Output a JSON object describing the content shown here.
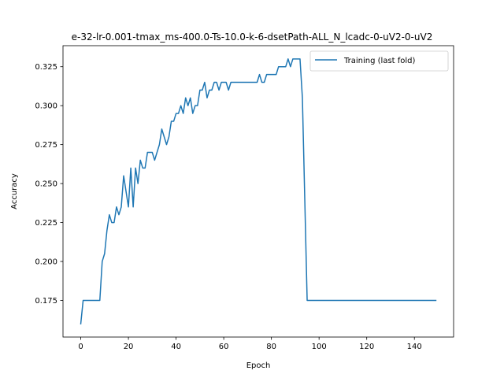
{
  "chart_data": {
    "type": "line",
    "title": "e-32-lr-0.001-tmax_ms-400.0-Ts-10.0-k-6-dsetPath-ALL_N_lcadc-0-uV2-0-uV2",
    "xlabel": "Epoch",
    "ylabel": "Accuracy",
    "xlim": [
      -7.45,
      156.45
    ],
    "ylim": [
      0.1515,
      0.3385
    ],
    "xticks": [
      0,
      20,
      40,
      60,
      80,
      100,
      120,
      140
    ],
    "yticks": [
      0.175,
      0.2,
      0.225,
      0.25,
      0.275,
      0.3,
      0.325
    ],
    "ytick_labels": [
      "0.175",
      "0.200",
      "0.225",
      "0.250",
      "0.275",
      "0.300",
      "0.325"
    ],
    "legend_position": "top-right",
    "series": [
      {
        "name": "Training (last fold)",
        "color": "#1f77b4",
        "x": [
          0,
          1,
          2,
          3,
          4,
          5,
          6,
          7,
          8,
          9,
          10,
          11,
          12,
          13,
          14,
          15,
          16,
          17,
          18,
          19,
          20,
          21,
          22,
          23,
          24,
          25,
          26,
          27,
          28,
          29,
          30,
          31,
          32,
          33,
          34,
          35,
          36,
          37,
          38,
          39,
          40,
          41,
          42,
          43,
          44,
          45,
          46,
          47,
          48,
          49,
          50,
          51,
          52,
          53,
          54,
          55,
          56,
          57,
          58,
          59,
          60,
          61,
          62,
          63,
          64,
          65,
          66,
          67,
          68,
          69,
          70,
          71,
          72,
          73,
          74,
          75,
          76,
          77,
          78,
          79,
          80,
          81,
          82,
          83,
          84,
          85,
          86,
          87,
          88,
          89,
          90,
          91,
          92,
          93,
          94,
          95,
          96,
          97,
          98,
          99,
          100,
          101,
          102,
          103,
          104,
          105,
          106,
          107,
          108,
          109,
          110,
          111,
          112,
          113,
          114,
          115,
          116,
          117,
          118,
          119,
          120,
          121,
          122,
          123,
          124,
          125,
          126,
          127,
          128,
          129,
          130,
          131,
          132,
          133,
          134,
          135,
          136,
          137,
          138,
          139,
          140,
          141,
          142,
          143,
          144,
          145,
          146,
          147,
          148,
          149
        ],
        "values": [
          0.16,
          0.175,
          0.175,
          0.175,
          0.175,
          0.175,
          0.175,
          0.175,
          0.175,
          0.2,
          0.205,
          0.22,
          0.23,
          0.225,
          0.225,
          0.235,
          0.23,
          0.235,
          0.255,
          0.245,
          0.235,
          0.26,
          0.235,
          0.26,
          0.25,
          0.265,
          0.26,
          0.26,
          0.27,
          0.27,
          0.27,
          0.265,
          0.27,
          0.275,
          0.285,
          0.28,
          0.275,
          0.28,
          0.29,
          0.29,
          0.295,
          0.295,
          0.3,
          0.295,
          0.305,
          0.3,
          0.305,
          0.295,
          0.3,
          0.3,
          0.31,
          0.31,
          0.315,
          0.305,
          0.31,
          0.31,
          0.315,
          0.315,
          0.31,
          0.315,
          0.315,
          0.315,
          0.31,
          0.315,
          0.315,
          0.315,
          0.315,
          0.315,
          0.315,
          0.315,
          0.315,
          0.315,
          0.315,
          0.315,
          0.315,
          0.32,
          0.315,
          0.315,
          0.32,
          0.32,
          0.32,
          0.32,
          0.32,
          0.325,
          0.325,
          0.325,
          0.325,
          0.33,
          0.325,
          0.33,
          0.33,
          0.33,
          0.33,
          0.305,
          0.24,
          0.175,
          0.175,
          0.175,
          0.175,
          0.175,
          0.175,
          0.175,
          0.175,
          0.175,
          0.175,
          0.175,
          0.175,
          0.175,
          0.175,
          0.175,
          0.175,
          0.175,
          0.175,
          0.175,
          0.175,
          0.175,
          0.175,
          0.175,
          0.175,
          0.175,
          0.175,
          0.175,
          0.175,
          0.175,
          0.175,
          0.175,
          0.175,
          0.175,
          0.175,
          0.175,
          0.175,
          0.175,
          0.175,
          0.175,
          0.175,
          0.175,
          0.175,
          0.175,
          0.175,
          0.175,
          0.175,
          0.175,
          0.175,
          0.175,
          0.175,
          0.175,
          0.175,
          0.175,
          0.175,
          0.175
        ]
      }
    ]
  }
}
